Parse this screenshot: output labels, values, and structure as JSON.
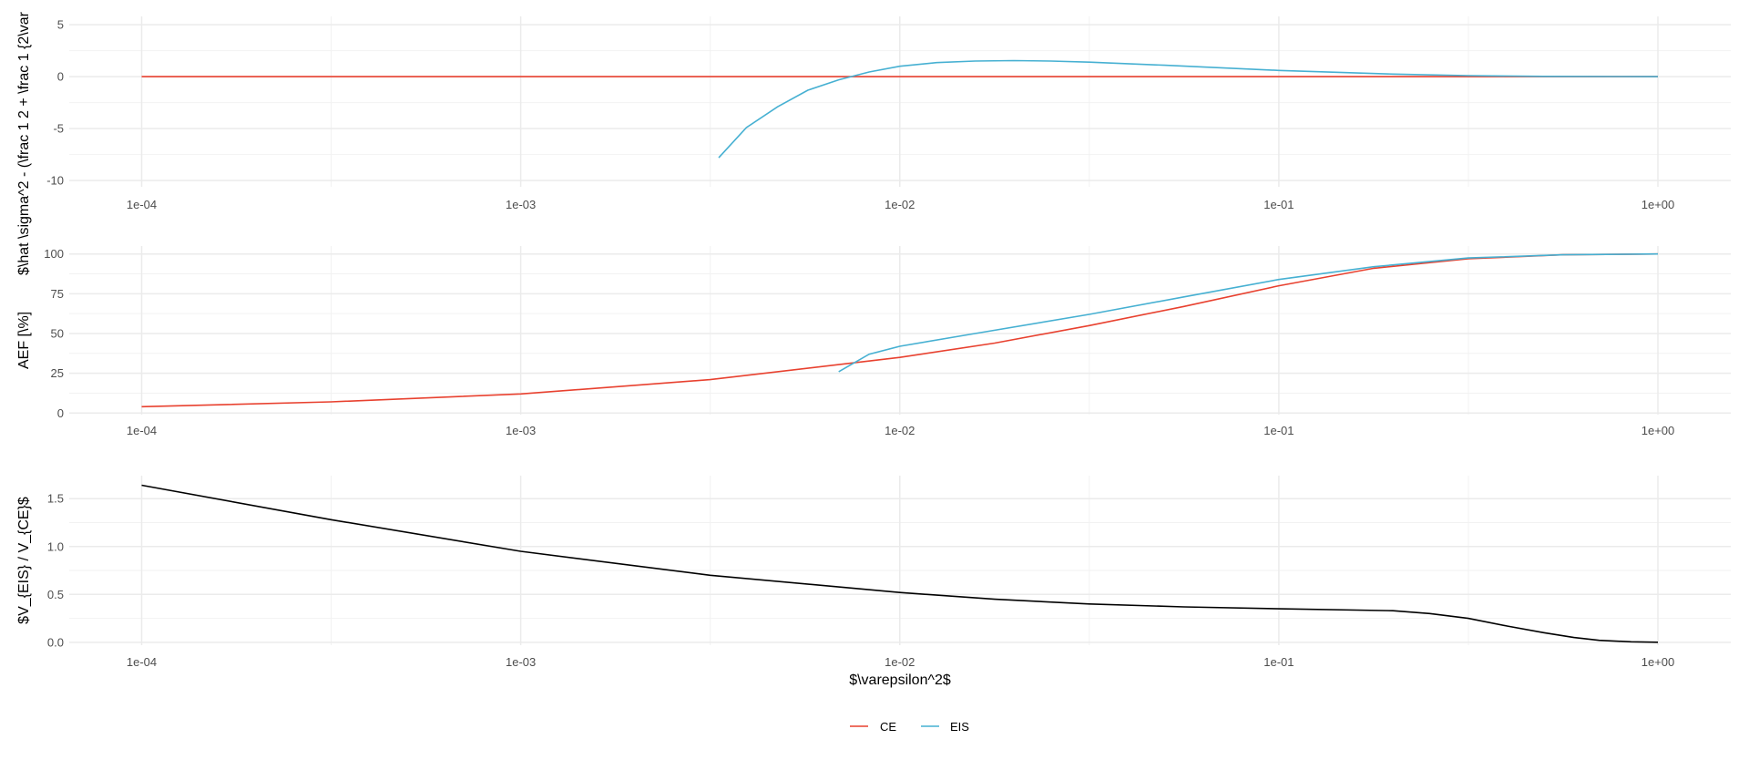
{
  "chart_data": [
    {
      "type": "line",
      "xscale": "log10",
      "xlim": [
        0.0001,
        1
      ],
      "xticks": [
        "1e-04",
        "1e-03",
        "1e-02",
        "1e-01",
        "1e+00"
      ],
      "ylabel": "$\\hat \\sigma^2 - (\\frac 1 2 + \\frac 1 {2\\var",
      "ylim": [
        -10.6,
        5.8
      ],
      "yticks": [
        -10,
        -5,
        0,
        5
      ],
      "grid": true,
      "series": [
        {
          "name": "CE",
          "color": "#E8412F",
          "x": [
            0.0001,
            0.001,
            0.01,
            0.1,
            1
          ],
          "y": [
            0,
            0,
            0,
            0,
            0
          ]
        },
        {
          "name": "EIS",
          "color": "#46B0D2",
          "x": [
            0.00333,
            0.00394,
            0.00476,
            0.00572,
            0.0069,
            0.0083,
            0.01,
            0.0125,
            0.0158,
            0.02,
            0.025,
            0.0316,
            0.05,
            0.1,
            0.2,
            0.316,
            0.5,
            1
          ],
          "y": [
            -7.8,
            -4.9,
            -2.9,
            -1.3,
            -0.3,
            0.45,
            1.0,
            1.35,
            1.5,
            1.55,
            1.5,
            1.4,
            1.1,
            0.6,
            0.25,
            0.1,
            0.03,
            0
          ]
        }
      ]
    },
    {
      "type": "line",
      "xscale": "log10",
      "xlim": [
        0.0001,
        1
      ],
      "xticks": [
        "1e-04",
        "1e-03",
        "1e-02",
        "1e-01",
        "1e+00"
      ],
      "ylabel": "AEF [\\%]",
      "ylim": [
        -1,
        105
      ],
      "yticks": [
        0,
        25,
        50,
        75,
        100
      ],
      "grid": true,
      "series": [
        {
          "name": "CE",
          "color": "#E8412F",
          "x": [
            0.0001,
            0.000316,
            0.001,
            0.00316,
            0.01,
            0.0178,
            0.0316,
            0.0562,
            0.1,
            0.178,
            0.316,
            0.562,
            1
          ],
          "y": [
            4,
            7,
            12,
            21,
            35,
            44,
            55,
            67,
            80,
            91,
            97,
            99.5,
            100
          ]
        },
        {
          "name": "EIS",
          "color": "#46B0D2",
          "x": [
            0.0069,
            0.0083,
            0.01,
            0.0158,
            0.0316,
            0.0562,
            0.1,
            0.178,
            0.316,
            0.562,
            1
          ],
          "y": [
            26,
            37,
            42,
            50,
            62,
            73,
            84,
            92,
            97.5,
            99.5,
            100
          ]
        }
      ]
    },
    {
      "type": "line",
      "xscale": "log10",
      "xlim": [
        0.0001,
        1
      ],
      "xticks": [
        "1e-04",
        "1e-03",
        "1e-02",
        "1e-01",
        "1e+00"
      ],
      "xlabel": "$\\varepsilon^2$",
      "ylabel": "$V_{EIS} / V_{CE}$",
      "ylim": [
        -0.03,
        1.74
      ],
      "yticks": [
        "0.0",
        "0.5",
        "1.0",
        "1.5"
      ],
      "grid": true,
      "series": [
        {
          "color": "#000000",
          "x": [
            0.0001,
            0.000316,
            0.001,
            0.00316,
            0.01,
            0.0178,
            0.0316,
            0.0562,
            0.1,
            0.2,
            0.25,
            0.316,
            0.4,
            0.5,
            0.6,
            0.7,
            0.85,
            1
          ],
          "y": [
            1.64,
            1.28,
            0.95,
            0.7,
            0.52,
            0.45,
            0.4,
            0.37,
            0.35,
            0.33,
            0.3,
            0.25,
            0.17,
            0.1,
            0.05,
            0.02,
            0.005,
            0
          ]
        }
      ]
    }
  ],
  "legend": {
    "placement": "bottom",
    "entries": [
      {
        "label": "CE",
        "color": "#E8412F"
      },
      {
        "label": "EIS",
        "color": "#46B0D2"
      }
    ]
  }
}
